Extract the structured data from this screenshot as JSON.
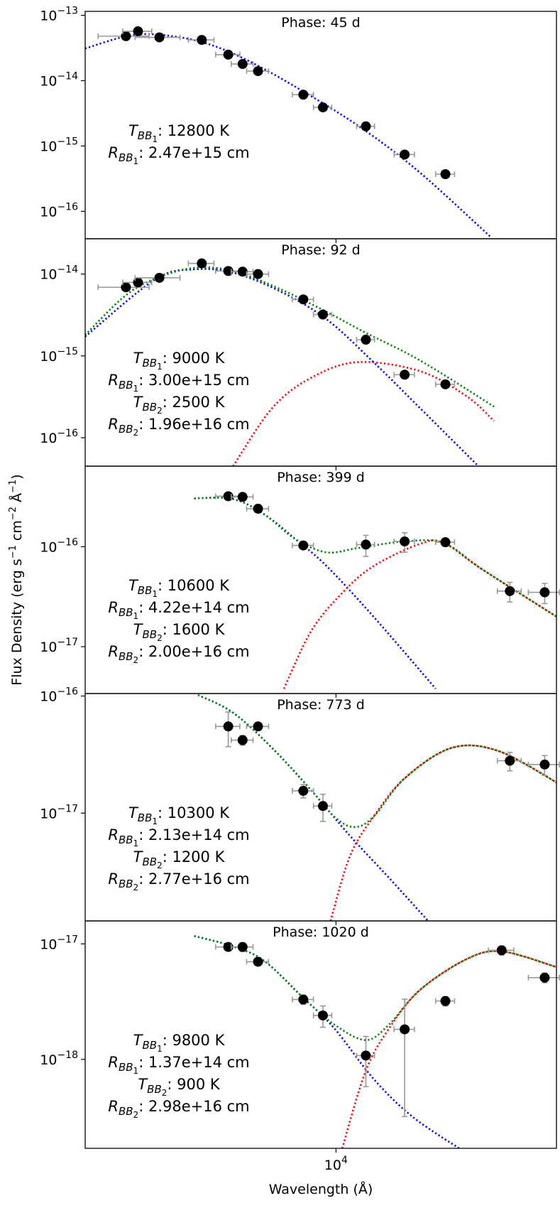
{
  "figure": {
    "xlabel": "Wavelength (Å)",
    "ylabel": [
      "Flux Density (erg s",
      "−1",
      " cm",
      "−2",
      " Å",
      "−1",
      ")"
    ],
    "log_x": true,
    "xlim": [
      1640,
      48980
    ],
    "xticks": [
      {
        "value": 10000,
        "label": "10",
        "sup": "4"
      }
    ]
  },
  "chart_data": [
    {
      "type": "scatter",
      "title": "Phase: 45 d",
      "log_y": true,
      "marker_color": "#000000",
      "errorbar_color": "#999999",
      "ylim": [
        3.8e-17,
        1.15e-13
      ],
      "yticks": [
        {
          "value": 1e-13,
          "label": "10",
          "sup": "−13"
        },
        {
          "value": 1e-14,
          "label": "10",
          "sup": "−14"
        },
        {
          "value": 1e-15,
          "label": "10",
          "sup": "−15"
        },
        {
          "value": 1e-16,
          "label": "10",
          "sup": "−16"
        }
      ],
      "x": [
        2200,
        2400,
        2800,
        3800,
        4600,
        5100,
        5700,
        7900,
        9100,
        12400,
        16400,
        22000
      ],
      "values": [
        4.8e-14,
        5.7e-14,
        4.6e-14,
        4.2e-14,
        2.5e-14,
        1.8e-14,
        1.4e-14,
        6.1e-15,
        3.9e-15,
        2e-15,
        7.4e-16,
        3.7e-16
      ],
      "xerr": [
        400,
        250,
        450,
        350,
        400,
        400,
        450,
        600,
        600,
        800,
        1200,
        1500
      ],
      "models": [
        {
          "color": "#0000ff",
          "x": [
            1640,
            2172,
            2716,
            3802,
            5333,
            8356,
            12380,
            18330,
            30400
          ],
          "values": [
            3.1e-14,
            4.7e-14,
            5.1e-14,
            3.9e-14,
            2e-14,
            5.8e-15,
            1.7e-15,
            3.9e-16,
            4.1e-17
          ]
        }
      ],
      "annotations": [
        {
          "symbol": "T",
          "subscript": "BB",
          "index": "1",
          "text": ": 12800 K"
        },
        {
          "symbol": "R",
          "subscript": "BB",
          "index": "1",
          "text": ": 2.47e+15 cm"
        }
      ]
    },
    {
      "type": "scatter",
      "title": "Phase: 92 d",
      "log_y": true,
      "marker_color": "#000000",
      "errorbar_color": "#999999",
      "ylim": [
        4.5e-17,
        2.7e-14
      ],
      "yticks": [
        {
          "value": 1e-14,
          "label": "10",
          "sup": "−14"
        },
        {
          "value": 1e-15,
          "label": "10",
          "sup": "−15"
        },
        {
          "value": 1e-16,
          "label": "10",
          "sup": "−16"
        }
      ],
      "x": [
        2200,
        2400,
        2800,
        3800,
        4600,
        5100,
        5700,
        7900,
        9100,
        12400,
        16400,
        22000
      ],
      "values": [
        6.9e-15,
        7.9e-15,
        9e-15,
        1.35e-14,
        1.09e-14,
        1.07e-14,
        1e-14,
        4.9e-15,
        3.2e-15,
        1.58e-15,
        5.9e-16,
        4.5e-16
      ],
      "xerr": [
        400,
        250,
        450,
        350,
        400,
        400,
        450,
        600,
        600,
        800,
        1200,
        1500
      ],
      "models": [
        {
          "color": "#0000ff",
          "x": [
            1640,
            2716,
            3600,
            4763,
            6663,
            9348,
            13100,
            18330,
            27900
          ],
          "values": [
            1.72e-15,
            8.6e-15,
            1.14e-14,
            1.04e-14,
            6.2e-15,
            2.8e-15,
            8.4e-16,
            2.3e-16,
            4.5e-17
          ]
        },
        {
          "color": "#ff0000",
          "x": [
            4763,
            6310,
            8356,
            11700,
            18330,
            25690,
            31240
          ],
          "values": [
            4.5e-17,
            2.3e-16,
            5.4e-16,
            8.4e-16,
            6.5e-16,
            3.2e-16,
            1.6e-16
          ]
        },
        {
          "color": "#008000",
          "x": [
            1640,
            2172,
            2716,
            3600,
            4763,
            6663,
            9348,
            12380,
            18330,
            31240
          ],
          "values": [
            1.8e-15,
            5.3e-15,
            8.8e-15,
            1.19e-14,
            1.09e-14,
            6.6e-15,
            3.45e-15,
            1.92e-15,
            8.8e-16,
            2.4e-16
          ]
        }
      ],
      "annotations": [
        {
          "symbol": "T",
          "subscript": "BB",
          "index": "1",
          "text": ": 9000 K"
        },
        {
          "symbol": "R",
          "subscript": "BB",
          "index": "1",
          "text": ": 3.00e+15 cm"
        },
        {
          "symbol": "T",
          "subscript": "BB",
          "index": "2",
          "text": ": 2500 K"
        },
        {
          "symbol": "R",
          "subscript": "BB",
          "index": "2",
          "text": ": 1.96e+16 cm"
        }
      ]
    },
    {
      "type": "scatter",
      "title": "Phase: 399 d",
      "log_y": true,
      "marker_color": "#000000",
      "errorbar_color": "#999999",
      "ylim": [
        3.4e-18,
        6.4e-16
      ],
      "yticks": [
        {
          "value": 1e-16,
          "label": "10",
          "sup": "−16"
        },
        {
          "value": 1e-17,
          "label": "10",
          "sup": "−17"
        }
      ],
      "x": [
        4600,
        5100,
        5700,
        7900,
        12400,
        16400,
        22000,
        35000,
        45000
      ],
      "values": [
        3.2e-16,
        3.15e-16,
        2.4e-16,
        1.03e-16,
        1.05e-16,
        1.13e-16,
        1.11e-16,
        3.6e-17,
        3.5e-17
      ],
      "xerr": [
        400,
        400,
        450,
        600,
        800,
        1200,
        1500,
        3000,
        5000
      ],
      "yerr": [
        1e-17,
        1e-17,
        1e-17,
        5e-18,
        2.5e-17,
        2.5e-17,
        1e-17,
        8e-18,
        8e-18
      ],
      "models": [
        {
          "color": "#0000ff",
          "x": [
            3600,
            4763,
            5970,
            7465,
            9348,
            13100,
            20510
          ],
          "values": [
            3.05e-16,
            3e-16,
            2.1e-16,
            1.19e-16,
            6.4e-17,
            2e-17,
            3.8e-18
          ]
        },
        {
          "color": "#ff0000",
          "x": [
            6871,
            8356,
            10460,
            13100,
            18330,
            21720,
            28770,
            48980
          ],
          "values": [
            3.8e-18,
            1.43e-17,
            3.45e-17,
            6.4e-17,
            1.07e-16,
            1.09e-16,
            5.9e-17,
            2e-17
          ]
        },
        {
          "color": "#008000",
          "x": [
            3600,
            4763,
            5970,
            7465,
            9348,
            11700,
            16395,
            21720,
            28770,
            48980
          ],
          "values": [
            3.05e-16,
            3e-16,
            2.1e-16,
            1.19e-16,
            8.8e-17,
            9.7e-17,
            1.13e-16,
            1.09e-16,
            5.9e-17,
            2e-17
          ]
        }
      ],
      "annotations": [
        {
          "symbol": "T",
          "subscript": "BB",
          "index": "1",
          "text": ": 10600 K"
        },
        {
          "symbol": "R",
          "subscript": "BB",
          "index": "1",
          "text": ": 4.22e+14 cm"
        },
        {
          "symbol": "T",
          "subscript": "BB",
          "index": "2",
          "text": ": 1600 K"
        },
        {
          "symbol": "R",
          "subscript": "BB",
          "index": "2",
          "text": ": 2.00e+16 cm"
        }
      ]
    },
    {
      "type": "scatter",
      "title": "Phase: 773 d",
      "log_y": true,
      "marker_color": "#000000",
      "errorbar_color": "#999999",
      "ylim": [
        1.2e-18,
        1.05e-16
      ],
      "yticks": [
        {
          "value": 1e-16,
          "label": "10",
          "sup": "−16"
        },
        {
          "value": 1e-17,
          "label": "10",
          "sup": "−17"
        }
      ],
      "x": [
        4600,
        5100,
        5700,
        7900,
        9100,
        35000,
        45000
      ],
      "values": [
        5.5e-17,
        4.2e-17,
        5.5e-17,
        1.55e-17,
        1.15e-17,
        2.8e-17,
        2.6e-17
      ],
      "xerr": [
        400,
        400,
        450,
        600,
        600,
        3000,
        5000
      ],
      "yerr": [
        1.8e-17,
        4e-18,
        3e-18,
        2e-18,
        3e-18,
        5e-18,
        5e-18
      ],
      "models": [
        {
          "color": "#0000ff",
          "x": [
            3700,
            4763,
            6310,
            8356,
            11060,
            14650,
            19420
          ],
          "values": [
            1.02e-16,
            7.2e-17,
            3.6e-17,
            1.57e-17,
            6.4e-18,
            2.8e-18,
            1.2e-18
          ]
        },
        {
          "color": "#ff0000",
          "x": [
            9614,
            11060,
            13100,
            16395,
            22970,
            32170,
            48980
          ],
          "values": [
            1.2e-18,
            4.3e-18,
            9.3e-18,
            1.98e-17,
            3.6e-17,
            3.4e-17,
            1.83e-17
          ]
        },
        {
          "color": "#008000",
          "x": [
            3700,
            4763,
            6310,
            8356,
            9888,
            11380,
            13100,
            16395,
            22970,
            32170,
            48980
          ],
          "values": [
            1.02e-16,
            7.2e-17,
            3.6e-17,
            1.57e-17,
            9.3e-18,
            7.6e-18,
            9.3e-18,
            1.98e-17,
            3.6e-17,
            3.4e-17,
            1.83e-17
          ]
        }
      ],
      "annotations": [
        {
          "symbol": "T",
          "subscript": "BB",
          "index": "1",
          "text": ": 10300 K"
        },
        {
          "symbol": "R",
          "subscript": "BB",
          "index": "1",
          "text": ": 2.13e+14 cm"
        },
        {
          "symbol": "T",
          "subscript": "BB",
          "index": "2",
          "text": ": 1200 K"
        },
        {
          "symbol": "R",
          "subscript": "BB",
          "index": "2",
          "text": ": 2.77e+16 cm"
        }
      ]
    },
    {
      "type": "scatter",
      "title": "Phase: 1020 d",
      "log_y": true,
      "marker_color": "#000000",
      "errorbar_color": "#999999",
      "ylim": [
        1.7e-19,
        1.58e-17
      ],
      "yticks": [
        {
          "value": 1e-17,
          "label": "10",
          "sup": "−17"
        },
        {
          "value": 1e-18,
          "label": "10",
          "sup": "−18"
        }
      ],
      "x": [
        4600,
        5100,
        5700,
        7900,
        9100,
        12400,
        16400,
        22000,
        33000,
        45000
      ],
      "values": [
        9.4e-18,
        9.4e-18,
        7e-18,
        3.3e-18,
        2.4e-18,
        1.08e-18,
        1.82e-18,
        3.2e-18,
        8.8e-18,
        5.1e-18
      ],
      "xerr": [
        400,
        400,
        450,
        600,
        600,
        800,
        1200,
        1500,
        3000,
        5000
      ],
      "yerr": [
        5e-19,
        8e-19,
        5e-19,
        3e-19,
        5e-19,
        5e-19,
        1.5e-18,
        3e-19,
        8e-19,
        5e-19
      ],
      "models": [
        {
          "color": "#0000ff",
          "x": [
            3600,
            4763,
            5970,
            7910,
            9888,
            13100,
            17330,
            24270
          ],
          "values": [
            1.17e-17,
            9.5e-18,
            7.1e-18,
            3.4e-18,
            1.85e-18,
            6.8e-19,
            3.2e-19,
            1.7e-19
          ]
        },
        {
          "color": "#ff0000",
          "x": [
            10460,
            12380,
            14650,
            18330,
            25690,
            33080,
            48980
          ],
          "values": [
            1.7e-19,
            7.9e-19,
            1.85e-18,
            4e-18,
            7.4e-18,
            8.6e-18,
            6.3e-18
          ]
        },
        {
          "color": "#008000",
          "x": [
            3600,
            4763,
            5970,
            7910,
            9888,
            12380,
            14650,
            18330,
            25690,
            33080,
            48980
          ],
          "values": [
            1.17e-17,
            9.5e-18,
            7.1e-18,
            3.4e-18,
            2e-18,
            1.47e-18,
            2e-18,
            4e-18,
            7.4e-18,
            8.6e-18,
            6.3e-18
          ]
        }
      ],
      "annotations": [
        {
          "symbol": "T",
          "subscript": "BB",
          "index": "1",
          "text": ": 9800 K"
        },
        {
          "symbol": "R",
          "subscript": "BB",
          "index": "1",
          "text": ": 1.37e+14 cm"
        },
        {
          "symbol": "T",
          "subscript": "BB",
          "index": "2",
          "text": ": 900 K"
        },
        {
          "symbol": "R",
          "subscript": "BB",
          "index": "2",
          "text": ": 2.98e+16 cm"
        }
      ]
    }
  ]
}
